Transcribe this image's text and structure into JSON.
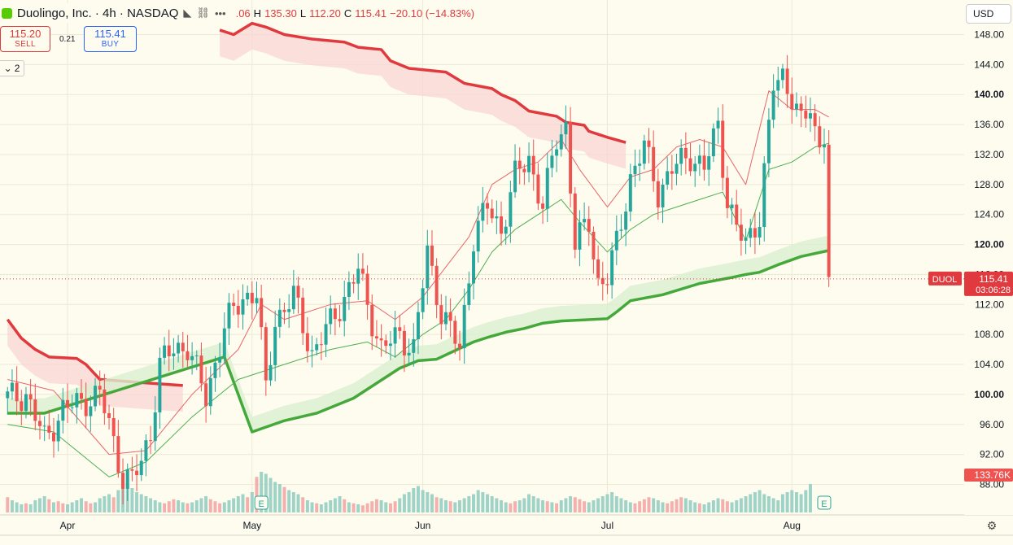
{
  "header": {
    "title": "Duolingo, Inc. · 4h · NASDAQ",
    "open_fragment": ".06",
    "h_label": "H",
    "high": "135.30",
    "l_label": "L",
    "low": "112.20",
    "c_label": "C",
    "close": "115.41",
    "change": "−20.10 (−14.83%)"
  },
  "trade": {
    "sell_price": "115.20",
    "sell_label": "SELL",
    "spread": "0.21",
    "buy_price": "115.41",
    "buy_label": "BUY"
  },
  "indicators_toggle": "2",
  "currency": "USD",
  "colors": {
    "up": "#26a69a",
    "down": "#ef5350",
    "upper_band": "#e0393e",
    "lower_band": "#44a83a"
  },
  "chart_data": {
    "type": "candlestick",
    "symbol": "DUOL",
    "last_price": "115.41",
    "countdown": "03:06:28",
    "volume_label": "133.76K",
    "earnings_marker": "E",
    "x_labels": [
      "Apr",
      "May",
      "Jun",
      "Jul",
      "Aug"
    ],
    "y_ticks": [
      148,
      144,
      140,
      136,
      132,
      128,
      124,
      120,
      116,
      112,
      108,
      104,
      100,
      96,
      92,
      88
    ],
    "y_tick_labels": [
      "148.00",
      "144.00",
      "140.00",
      "136.00",
      "132.00",
      "128.00",
      "124.00",
      "120.00",
      "116.00",
      "112.00",
      "108.00",
      "104.00",
      "100.00",
      "96.00",
      "92.00",
      "88.00"
    ],
    "bold_ticks": [
      140,
      120,
      100
    ],
    "ylim": [
      84.4,
      150.4
    ],
    "bars_total": 170,
    "x_label_index": [
      13,
      53,
      90,
      130,
      170
    ],
    "earnings_index": [
      55,
      177
    ],
    "path": [
      [
        0,
        99.5
      ],
      [
        4,
        100.0
      ],
      [
        8,
        94.0
      ],
      [
        12,
        98.0
      ],
      [
        16,
        99.0
      ],
      [
        20,
        100.0
      ],
      [
        22,
        96.0
      ],
      [
        25,
        89.0
      ],
      [
        27,
        88.5
      ],
      [
        29,
        91.0
      ],
      [
        31,
        95.0
      ],
      [
        33,
        104.0
      ],
      [
        36,
        106.0
      ],
      [
        39,
        106.5
      ],
      [
        43,
        99.5
      ],
      [
        47,
        109.0
      ],
      [
        51,
        113.0
      ],
      [
        54,
        113.5
      ],
      [
        56,
        100.5
      ],
      [
        58,
        110.0
      ],
      [
        62,
        113.0
      ],
      [
        66,
        105.5
      ],
      [
        70,
        109.5
      ],
      [
        73,
        113.0
      ],
      [
        76,
        116.5
      ],
      [
        78,
        112.0
      ],
      [
        81,
        106.0
      ],
      [
        85,
        108.0
      ],
      [
        88,
        106.0
      ],
      [
        91,
        119.0
      ],
      [
        94,
        111.0
      ],
      [
        98,
        106.0
      ],
      [
        101,
        121.0
      ],
      [
        104,
        125.0
      ],
      [
        107,
        122.0
      ],
      [
        110,
        129.0
      ],
      [
        113,
        131.5
      ],
      [
        116,
        125.0
      ],
      [
        119,
        134.0
      ],
      [
        121,
        136.0
      ],
      [
        123,
        120.0
      ],
      [
        126,
        123.0
      ],
      [
        128,
        115.0
      ],
      [
        130,
        115.5
      ],
      [
        132,
        120.0
      ],
      [
        135,
        129.0
      ],
      [
        138,
        133.0
      ],
      [
        141,
        127.0
      ],
      [
        144,
        130.0
      ],
      [
        148,
        132.0
      ],
      [
        151,
        130.0
      ],
      [
        154,
        136.0
      ],
      [
        156,
        126.0
      ],
      [
        158,
        122.0
      ],
      [
        160,
        120.0
      ],
      [
        163,
        124.0
      ],
      [
        166,
        141.0
      ],
      [
        168,
        142.5
      ],
      [
        170,
        140.0
      ],
      [
        172,
        136.0
      ],
      [
        174,
        138.0
      ],
      [
        175,
        135.0
      ],
      [
        176,
        133.5
      ],
      [
        177,
        135.3
      ],
      [
        178,
        115.41
      ]
    ],
    "upper_band": [
      [
        0,
        110.0
      ],
      [
        3,
        107.5
      ],
      [
        6,
        106.0
      ],
      [
        9,
        105.0
      ],
      [
        15,
        104.8
      ],
      [
        17,
        104.0
      ],
      [
        20,
        102.0
      ],
      [
        31,
        101.5
      ],
      [
        38,
        101.2
      ],
      [
        46,
        148.6
      ],
      [
        49,
        148.0
      ],
      [
        53,
        149.5
      ],
      [
        56,
        149.0
      ],
      [
        60,
        148.0
      ],
      [
        66,
        147.4
      ],
      [
        73,
        147.0
      ],
      [
        76,
        146.3
      ],
      [
        81,
        146.0
      ],
      [
        83,
        144.5
      ],
      [
        87,
        143.5
      ],
      [
        95,
        143.0
      ],
      [
        99,
        141.5
      ],
      [
        105,
        140.8
      ],
      [
        107,
        140.0
      ],
      [
        110,
        139.2
      ],
      [
        113,
        137.8
      ],
      [
        119,
        137.1
      ],
      [
        121,
        136.3
      ],
      [
        125,
        135.9
      ],
      [
        126,
        135.1
      ],
      [
        128,
        134.7
      ],
      [
        130,
        134.3
      ],
      [
        134,
        133.6
      ]
    ],
    "lower_band": [
      [
        0,
        97.5
      ],
      [
        8,
        97.5
      ],
      [
        47,
        105.0
      ],
      [
        53,
        95.0
      ],
      [
        60,
        96.5
      ],
      [
        67,
        97.5
      ],
      [
        75,
        99.5
      ],
      [
        85,
        103.5
      ],
      [
        89,
        104.5
      ],
      [
        93,
        104.7
      ],
      [
        101,
        107.0
      ],
      [
        104,
        107.6
      ],
      [
        108,
        108.3
      ],
      [
        112,
        108.8
      ],
      [
        116,
        109.5
      ],
      [
        120,
        109.8
      ],
      [
        130,
        110.1
      ],
      [
        132,
        111.0
      ],
      [
        135,
        112.5
      ],
      [
        142,
        113.3
      ],
      [
        150,
        114.8
      ],
      [
        157,
        115.6
      ],
      [
        160,
        116.0
      ],
      [
        163,
        116.3
      ],
      [
        167,
        117.3
      ],
      [
        172,
        118.4
      ],
      [
        178,
        119.2
      ]
    ],
    "upper_trail": [
      [
        0,
        102.0
      ],
      [
        10,
        100.5
      ],
      [
        22,
        92.0
      ],
      [
        30,
        92.5
      ],
      [
        40,
        100.0
      ],
      [
        50,
        106.0
      ],
      [
        55,
        112.0
      ],
      [
        60,
        110.0
      ],
      [
        70,
        112.0
      ],
      [
        78,
        112.5
      ],
      [
        84,
        110.0
      ],
      [
        90,
        113.0
      ],
      [
        95,
        117.0
      ],
      [
        100,
        121.0
      ],
      [
        105,
        128.0
      ],
      [
        110,
        130.0
      ],
      [
        115,
        131.0
      ],
      [
        120,
        134.0
      ],
      [
        124,
        130.0
      ],
      [
        130,
        125.0
      ],
      [
        135,
        129.0
      ],
      [
        140,
        130.0
      ],
      [
        145,
        133.0
      ],
      [
        150,
        134.0
      ],
      [
        155,
        133.0
      ],
      [
        160,
        128.0
      ],
      [
        165,
        140.5
      ],
      [
        170,
        138.0
      ],
      [
        175,
        138.0
      ],
      [
        178,
        137.0
      ]
    ],
    "lower_trail": [
      [
        0,
        96.0
      ],
      [
        10,
        95.0
      ],
      [
        22,
        89.0
      ],
      [
        30,
        91.0
      ],
      [
        40,
        97.0
      ],
      [
        50,
        102.0
      ],
      [
        55,
        103.0
      ],
      [
        60,
        104.0
      ],
      [
        70,
        106.0
      ],
      [
        78,
        107.0
      ],
      [
        84,
        105.0
      ],
      [
        90,
        108.0
      ],
      [
        95,
        110.0
      ],
      [
        100,
        114.0
      ],
      [
        105,
        119.0
      ],
      [
        110,
        122.0
      ],
      [
        115,
        124.0
      ],
      [
        120,
        126.0
      ],
      [
        124,
        123.0
      ],
      [
        130,
        119.0
      ],
      [
        135,
        122.0
      ],
      [
        140,
        124.0
      ],
      [
        145,
        125.0
      ],
      [
        150,
        126.0
      ],
      [
        155,
        127.0
      ],
      [
        160,
        120.5
      ],
      [
        165,
        130.0
      ],
      [
        170,
        131.0
      ],
      [
        175,
        133.0
      ],
      [
        178,
        133.5
      ]
    ],
    "volume": [
      15,
      12,
      10,
      8,
      9,
      8,
      12,
      14,
      16,
      13,
      10,
      11,
      9,
      8,
      10,
      12,
      14,
      11,
      9,
      10,
      14,
      16,
      18,
      15,
      22,
      30,
      28,
      24,
      20,
      18,
      16,
      14,
      12,
      10,
      9,
      11,
      13,
      12,
      10,
      9,
      10,
      12,
      14,
      16,
      13,
      11,
      9,
      10,
      12,
      14,
      16,
      18,
      15,
      20,
      35,
      40,
      38,
      34,
      30,
      28,
      25,
      22,
      20,
      18,
      15,
      12,
      10,
      9,
      8,
      10,
      12,
      14,
      16,
      13,
      10,
      9,
      8,
      7,
      9,
      11,
      13,
      12,
      10,
      9,
      11,
      14,
      18,
      20,
      24,
      26,
      22,
      20,
      18,
      15,
      14,
      12,
      11,
      10,
      12,
      14,
      16,
      18,
      22,
      20,
      18,
      16,
      14,
      12,
      10,
      9,
      11,
      12,
      14,
      18,
      16,
      14,
      12,
      11,
      10,
      9,
      12,
      14,
      16,
      15,
      13,
      11,
      10,
      12,
      14,
      16,
      18,
      20,
      16,
      14,
      12,
      10,
      9,
      11,
      13,
      15,
      14,
      12,
      10,
      9,
      11,
      13,
      15,
      14,
      12,
      10,
      9,
      8,
      10,
      12,
      14,
      13,
      11,
      10,
      12,
      14,
      16,
      18,
      20,
      22,
      18,
      16,
      14,
      12,
      18,
      20,
      22,
      20,
      18,
      22,
      28
    ]
  }
}
